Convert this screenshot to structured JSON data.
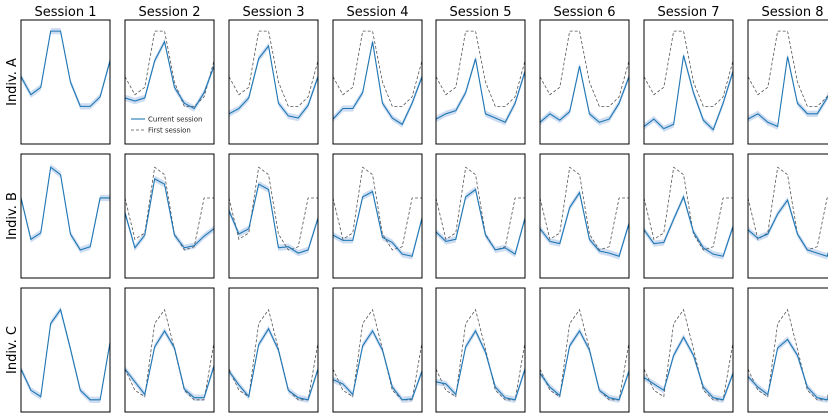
{
  "chart_data": {
    "type": "line",
    "title": "",
    "layout": "small-multiples grid, 3 rows x 8 columns",
    "columns": [
      "Session 1",
      "Session 2",
      "Session 3",
      "Session 4",
      "Session 5",
      "Session 6",
      "Session 7",
      "Session 8"
    ],
    "rows": [
      "Indiv. A",
      "Indiv. B",
      "Indiv. C"
    ],
    "x": [
      0,
      1,
      2,
      3,
      4,
      5,
      6,
      7,
      8,
      9
    ],
    "ylim": [
      0,
      1
    ],
    "axes_ticks": false,
    "grid": false,
    "legend": {
      "placement": "inside row 1 column 2, lower left",
      "entries": [
        "Current session",
        "First session"
      ]
    },
    "colors": {
      "current": "#1f77b4",
      "band": "#aec7e8",
      "first": "#555555"
    },
    "series": [
      {
        "name": "First session",
        "style": "dashed",
        "per_row": [
          [
            0.55,
            0.38,
            0.45,
            0.98,
            0.98,
            0.5,
            0.27,
            0.27,
            0.36,
            0.7
          ],
          [
            0.67,
            0.28,
            0.34,
            0.96,
            0.89,
            0.33,
            0.18,
            0.21,
            0.67,
            0.67
          ],
          [
            0.32,
            0.12,
            0.06,
            0.75,
            0.88,
            0.51,
            0.12,
            0.03,
            0.03,
            0.57
          ]
        ]
      },
      {
        "name": "Current session",
        "style": "solid",
        "per_row": [
          [
            [
              0.55,
              0.38,
              0.45,
              0.98,
              0.98,
              0.5,
              0.27,
              0.27,
              0.36,
              0.7
            ],
            [
              0.35,
              0.32,
              0.35,
              0.7,
              0.88,
              0.45,
              0.3,
              0.25,
              0.4,
              0.65
            ],
            [
              0.2,
              0.25,
              0.35,
              0.72,
              0.84,
              0.3,
              0.18,
              0.16,
              0.28,
              0.55
            ],
            [
              0.15,
              0.25,
              0.25,
              0.4,
              0.88,
              0.3,
              0.16,
              0.1,
              0.3,
              0.55
            ],
            [
              0.15,
              0.2,
              0.23,
              0.4,
              0.72,
              0.2,
              0.16,
              0.12,
              0.3,
              0.6
            ],
            [
              0.12,
              0.2,
              0.14,
              0.22,
              0.65,
              0.2,
              0.12,
              0.15,
              0.3,
              0.55
            ],
            [
              0.08,
              0.15,
              0.06,
              0.1,
              0.75,
              0.4,
              0.14,
              0.05,
              0.3,
              0.6
            ],
            [
              0.15,
              0.2,
              0.12,
              0.08,
              0.74,
              0.3,
              0.2,
              0.2,
              0.35,
              0.5
            ]
          ],
          [
            [
              0.67,
              0.28,
              0.34,
              0.96,
              0.89,
              0.33,
              0.18,
              0.21,
              0.67,
              0.67
            ],
            [
              0.53,
              0.2,
              0.32,
              0.85,
              0.8,
              0.32,
              0.2,
              0.22,
              0.31,
              0.38
            ],
            [
              0.55,
              0.33,
              0.38,
              0.8,
              0.75,
              0.2,
              0.21,
              0.15,
              0.18,
              0.48
            ],
            [
              0.32,
              0.27,
              0.27,
              0.68,
              0.73,
              0.3,
              0.25,
              0.14,
              0.12,
              0.48
            ],
            [
              0.35,
              0.26,
              0.28,
              0.68,
              0.75,
              0.32,
              0.18,
              0.2,
              0.14,
              0.48
            ],
            [
              0.38,
              0.26,
              0.24,
              0.58,
              0.72,
              0.28,
              0.17,
              0.15,
              0.12,
              0.43
            ],
            [
              0.37,
              0.24,
              0.25,
              0.47,
              0.68,
              0.35,
              0.2,
              0.14,
              0.12,
              0.4
            ],
            [
              0.37,
              0.29,
              0.33,
              0.52,
              0.65,
              0.33,
              0.18,
              0.15,
              0.12,
              0.4
            ]
          ],
          [
            [
              0.32,
              0.12,
              0.06,
              0.75,
              0.88,
              0.51,
              0.12,
              0.03,
              0.03,
              0.57
            ],
            [
              0.32,
              0.2,
              0.08,
              0.53,
              0.68,
              0.52,
              0.13,
              0.05,
              0.05,
              0.35
            ],
            [
              0.3,
              0.17,
              0.06,
              0.55,
              0.7,
              0.5,
              0.12,
              0.05,
              0.03,
              0.32
            ],
            [
              0.22,
              0.18,
              0.08,
              0.54,
              0.68,
              0.5,
              0.15,
              0.03,
              0.04,
              0.3
            ],
            [
              0.2,
              0.18,
              0.08,
              0.53,
              0.68,
              0.48,
              0.15,
              0.05,
              0.03,
              0.32
            ],
            [
              0.28,
              0.15,
              0.07,
              0.54,
              0.68,
              0.5,
              0.12,
              0.05,
              0.03,
              0.3
            ],
            [
              0.24,
              0.18,
              0.12,
              0.45,
              0.62,
              0.45,
              0.15,
              0.05,
              0.03,
              0.28
            ],
            [
              0.25,
              0.15,
              0.08,
              0.52,
              0.6,
              0.45,
              0.15,
              0.05,
              0.03,
              0.2
            ]
          ]
        ]
      }
    ]
  }
}
